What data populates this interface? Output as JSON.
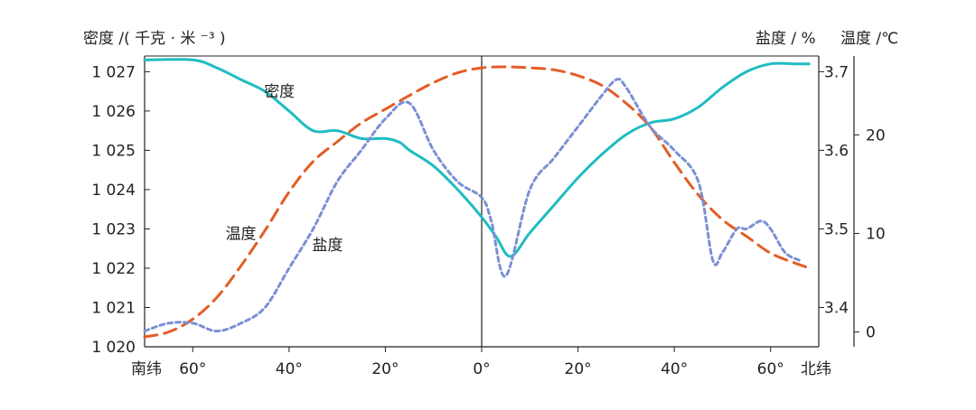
{
  "chart_data": {
    "type": "line",
    "x_axis": {
      "ticks": [
        {
          "value": -60,
          "label": "60°"
        },
        {
          "value": -40,
          "label": "40°"
        },
        {
          "value": -20,
          "label": "20°"
        },
        {
          "value": 0,
          "label": "0°"
        },
        {
          "value": 20,
          "label": "20°"
        },
        {
          "value": 40,
          "label": "40°"
        },
        {
          "value": 60,
          "label": "60°"
        }
      ],
      "left_end_label": "南纬",
      "right_end_label": "北纬",
      "range": [
        -70,
        70
      ],
      "note": "negative values = south latitude"
    },
    "y_axes": {
      "density": {
        "title": "密度 /( 千克 · 米 ⁻³ )",
        "range": [
          1020,
          1027.4
        ],
        "ticks": [
          1020,
          1021,
          1022,
          1023,
          1024,
          1025,
          1026,
          1027
        ],
        "tick_labels": [
          "1 020",
          "1 021",
          "1 022",
          "1 023",
          "1 024",
          "1 025",
          "1 026",
          "1 027"
        ]
      },
      "salinity": {
        "title": "盐度 / %",
        "range": [
          3.35,
          3.72
        ],
        "ticks": [
          3.4,
          3.5,
          3.6,
          3.7
        ],
        "tick_labels": [
          "3.4",
          "3.5",
          "3.6",
          "3.7"
        ]
      },
      "temperature": {
        "title": "温度 /℃",
        "range": [
          -1.5,
          28
        ],
        "ticks": [
          0,
          10,
          20
        ],
        "tick_labels": [
          "0",
          "10",
          "20"
        ]
      }
    },
    "series": [
      {
        "name": "密度",
        "axis": "density",
        "color": "#1fbcc2",
        "style": "solid",
        "x": [
          -70,
          -60,
          -55,
          -50,
          -45,
          -40,
          -35,
          -30,
          -25,
          -20,
          -17,
          -15,
          -10,
          -5,
          0,
          3,
          6,
          10,
          15,
          20,
          25,
          30,
          35,
          40,
          45,
          50,
          55,
          60,
          65,
          68
        ],
        "y": [
          1027.3,
          1027.3,
          1027.1,
          1026.8,
          1026.5,
          1026.0,
          1025.5,
          1025.5,
          1025.3,
          1025.3,
          1025.2,
          1025.0,
          1024.6,
          1024.0,
          1023.3,
          1022.8,
          1022.3,
          1022.9,
          1023.6,
          1024.3,
          1024.9,
          1025.4,
          1025.7,
          1025.8,
          1026.1,
          1026.6,
          1027.0,
          1027.2,
          1027.2,
          1027.2
        ]
      },
      {
        "name": "温度",
        "axis": "temperature",
        "color": "#e35d26",
        "style": "dashed",
        "x": [
          -70,
          -65,
          -60,
          -55,
          -50,
          -45,
          -40,
          -35,
          -30,
          -25,
          -20,
          -15,
          -10,
          -5,
          0,
          5,
          10,
          15,
          20,
          25,
          30,
          35,
          40,
          45,
          50,
          55,
          60,
          65,
          68
        ],
        "y": [
          -0.5,
          0,
          1.3,
          3.5,
          6.7,
          10.3,
          14.2,
          17.3,
          19.3,
          21.2,
          22.6,
          24.0,
          25.3,
          26.3,
          26.8,
          26.9,
          26.8,
          26.6,
          26.0,
          25.0,
          23.2,
          20.8,
          17.2,
          13.9,
          11.4,
          9.7,
          8.0,
          7.0,
          6.5
        ]
      },
      {
        "name": "盐度",
        "axis": "salinity",
        "color": "#7a90d4",
        "style": "dotted",
        "x": [
          -70,
          -65,
          -60,
          -55,
          -50,
          -45,
          -40,
          -35,
          -30,
          -25,
          -20,
          -15,
          -10,
          -5,
          0,
          2,
          5,
          10,
          15,
          20,
          25,
          28,
          30,
          35,
          40,
          45,
          48,
          50,
          53,
          55,
          58,
          60,
          63,
          66
        ],
        "y": [
          3.37,
          3.38,
          3.38,
          3.37,
          3.38,
          3.4,
          3.45,
          3.5,
          3.56,
          3.6,
          3.64,
          3.66,
          3.6,
          3.56,
          3.54,
          3.51,
          3.44,
          3.55,
          3.59,
          3.63,
          3.67,
          3.69,
          3.68,
          3.63,
          3.6,
          3.56,
          3.46,
          3.47,
          3.5,
          3.5,
          3.51,
          3.5,
          3.47,
          3.46
        ]
      }
    ],
    "series_labels": [
      {
        "series": "密度",
        "text": "密度",
        "at": {
          "x": -42,
          "y_axis": "density",
          "y": 1026.5
        }
      },
      {
        "series": "温度",
        "text": "温度",
        "at": {
          "x": -50,
          "y_axis": "temperature",
          "y": 10
        }
      },
      {
        "series": "盐度",
        "text": "盐度",
        "at": {
          "x": -32,
          "y_axis": "salinity",
          "y": 3.48
        }
      }
    ],
    "grid": false,
    "equator_line": {
      "x": 0,
      "label": "0°"
    }
  }
}
